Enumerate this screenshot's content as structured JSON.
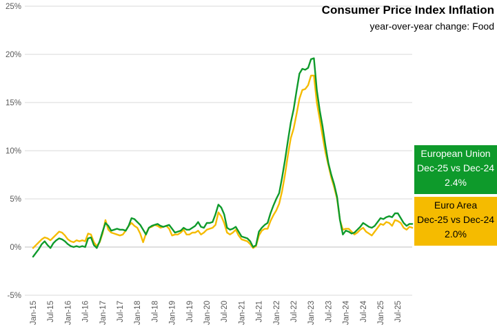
{
  "chart_data": {
    "type": "line",
    "title": "Consumer Price Index Inflation",
    "subtitle": "year-over-year change: Food",
    "xlabel": "",
    "ylabel": "",
    "ylim": [
      -5,
      25
    ],
    "yticks": [
      "-5%",
      "0%",
      "5%",
      "10%",
      "15%",
      "20%",
      "25%"
    ],
    "ytick_values": [
      -5,
      0,
      5,
      10,
      15,
      20,
      25
    ],
    "xtick_labels": [
      "Jan-15",
      "Jul-15",
      "Jan-16",
      "Jul-16",
      "Jan-17",
      "Jul-17",
      "Jan-18",
      "Jul-18",
      "Jan-19",
      "Jul-19",
      "Jan-20",
      "Jul-20",
      "Jan-21",
      "Jul-21",
      "Jan-22",
      "Jul-22",
      "Jan-23",
      "Jul-23",
      "Jan-24",
      "Jul-24",
      "Jan-25",
      "Jul-25"
    ],
    "grid": "horizontal",
    "x_start": "2015-01",
    "x_end": "2025-12",
    "series": [
      {
        "name": "European Union",
        "color": "#0e9a2b",
        "values": [
          -1.0,
          -0.6,
          -0.2,
          0.3,
          0.6,
          0.2,
          -0.1,
          0.4,
          0.7,
          0.9,
          0.8,
          0.6,
          0.3,
          0.1,
          0.0,
          0.1,
          0.0,
          0.1,
          0.0,
          0.9,
          1.0,
          0.2,
          -0.1,
          0.6,
          1.6,
          2.5,
          2.2,
          1.7,
          1.8,
          1.9,
          1.8,
          1.8,
          1.7,
          2.2,
          3.0,
          2.9,
          2.6,
          2.3,
          1.8,
          1.3,
          2.0,
          2.2,
          2.3,
          2.4,
          2.2,
          2.1,
          2.2,
          2.3,
          1.9,
          1.5,
          1.6,
          1.7,
          2.0,
          1.8,
          1.8,
          2.0,
          2.2,
          2.6,
          2.1,
          2.0,
          2.5,
          2.5,
          2.6,
          3.4,
          4.4,
          4.1,
          3.4,
          2.0,
          1.8,
          1.9,
          2.1,
          1.6,
          1.1,
          1.0,
          0.9,
          0.6,
          0.0,
          0.2,
          1.6,
          2.0,
          2.3,
          2.5,
          3.5,
          4.3,
          5.0,
          5.6,
          7.2,
          9.0,
          11.0,
          12.9,
          14.3,
          16.2,
          18.0,
          18.5,
          18.4,
          18.6,
          19.5,
          19.6,
          16.3,
          14.2,
          12.5,
          10.5,
          8.7,
          7.5,
          6.5,
          5.2,
          2.8,
          1.3,
          1.7,
          1.6,
          1.4,
          1.5,
          1.8,
          2.1,
          2.5,
          2.3,
          2.1,
          2.0,
          2.2,
          2.6,
          3.0,
          2.9,
          3.1,
          3.2,
          3.1,
          3.5,
          3.5,
          3.0,
          2.5,
          2.2,
          2.4,
          2.4
        ]
      },
      {
        "name": "Euro Area",
        "color": "#f5bb00",
        "values": [
          -0.1,
          0.2,
          0.5,
          0.8,
          1.0,
          0.9,
          0.7,
          1.0,
          1.3,
          1.6,
          1.5,
          1.2,
          0.8,
          0.6,
          0.5,
          0.7,
          0.6,
          0.7,
          0.6,
          1.4,
          1.3,
          0.5,
          0.1,
          0.5,
          1.4,
          2.8,
          1.8,
          1.5,
          1.4,
          1.3,
          1.2,
          1.3,
          1.7,
          2.2,
          2.5,
          2.2,
          2.0,
          1.4,
          0.5,
          1.4,
          2.0,
          2.1,
          2.3,
          2.2,
          2.0,
          2.1,
          2.2,
          1.9,
          1.2,
          1.3,
          1.3,
          1.5,
          1.8,
          1.3,
          1.3,
          1.5,
          1.5,
          1.7,
          1.3,
          1.5,
          1.8,
          1.9,
          2.0,
          2.3,
          3.6,
          3.2,
          2.5,
          1.5,
          1.3,
          1.5,
          1.8,
          1.2,
          0.8,
          0.7,
          0.6,
          0.3,
          -0.1,
          0.1,
          1.2,
          1.7,
          1.9,
          1.9,
          2.7,
          3.3,
          3.8,
          4.5,
          5.8,
          7.5,
          9.5,
          11.3,
          12.3,
          13.8,
          15.4,
          16.3,
          16.4,
          16.8,
          17.8,
          17.8,
          15.0,
          13.3,
          11.5,
          9.8,
          8.5,
          7.2,
          6.2,
          5.0,
          2.8,
          1.8,
          1.9,
          1.9,
          1.6,
          1.3,
          1.5,
          1.8,
          2.0,
          1.6,
          1.4,
          1.2,
          1.6,
          2.0,
          2.4,
          2.3,
          2.6,
          2.5,
          2.2,
          2.8,
          2.7,
          2.5,
          2.0,
          1.8,
          2.1,
          2.0
        ]
      }
    ]
  },
  "callouts": [
    {
      "series": "European Union",
      "line1": "European Union",
      "line2": "Dec-25 vs Dec-24",
      "value": "2.4%",
      "color": "#0e9a2b"
    },
    {
      "series": "Euro Area",
      "line1": "Euro Area",
      "line2": "Dec-25 vs Dec-24",
      "value": "2.0%",
      "color": "#f5bb00"
    }
  ]
}
